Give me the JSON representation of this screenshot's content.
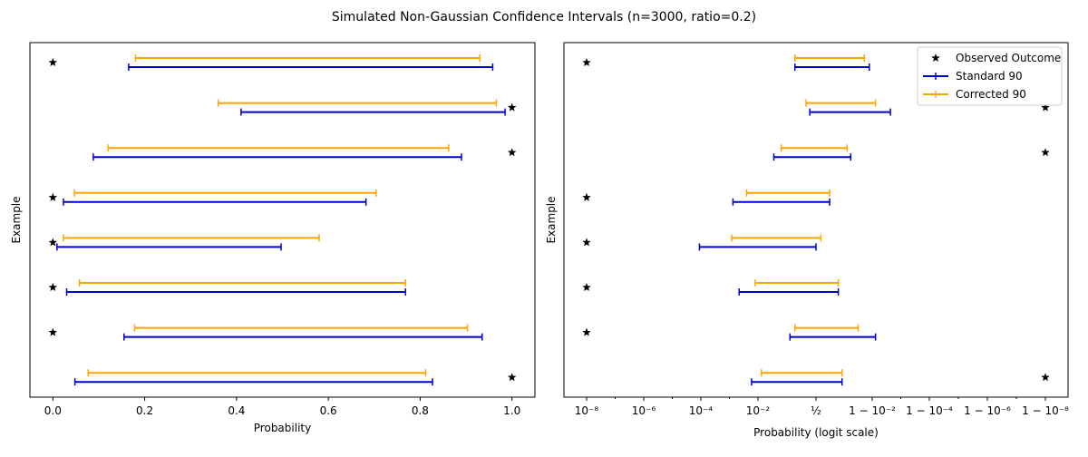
{
  "figure": {
    "title": "Simulated Non-Gaussian Confidence Intervals (n=3000, ratio=0.2)"
  },
  "chart_data": [
    {
      "type": "interval",
      "name": "left",
      "xlabel": "Probability",
      "ylabel": "Example",
      "xscale": "linear",
      "xlim": [
        -0.05,
        1.05
      ],
      "xticks": [
        0.0,
        0.2,
        0.4,
        0.6,
        0.8,
        1.0
      ],
      "xtick_labels": [
        "0.0",
        "0.2",
        "0.4",
        "0.6",
        "0.8",
        "1.0"
      ],
      "legend": false,
      "examples": [
        {
          "outcome": 0,
          "standard": [
            0.165,
            0.958
          ],
          "corrected": [
            0.18,
            0.93
          ]
        },
        {
          "outcome": 1,
          "standard": [
            0.41,
            0.985
          ],
          "corrected": [
            0.36,
            0.966
          ]
        },
        {
          "outcome": 1,
          "standard": [
            0.088,
            0.89
          ],
          "corrected": [
            0.12,
            0.862
          ]
        },
        {
          "outcome": 0,
          "standard": [
            0.023,
            0.682
          ],
          "corrected": [
            0.047,
            0.704
          ]
        },
        {
          "outcome": 0,
          "standard": [
            0.009,
            0.497
          ],
          "corrected": [
            0.023,
            0.58
          ]
        },
        {
          "outcome": 0,
          "standard": [
            0.03,
            0.768
          ],
          "corrected": [
            0.058,
            0.768
          ]
        },
        {
          "outcome": 0,
          "standard": [
            0.155,
            0.935
          ],
          "corrected": [
            0.178,
            0.903
          ]
        },
        {
          "outcome": 1,
          "standard": [
            0.048,
            0.827
          ],
          "corrected": [
            0.077,
            0.812
          ]
        }
      ]
    },
    {
      "type": "interval",
      "name": "right",
      "xlabel": "Probability (logit scale)",
      "ylabel": "Example",
      "xscale": "logit",
      "xtick_labels": [
        "10⁻⁸",
        "10⁻⁶",
        "10⁻⁴",
        "10⁻²",
        "½",
        "1 − 10⁻²",
        "1 − 10⁻⁴",
        "1 − 10⁻⁶",
        "1 − 10⁻⁸"
      ],
      "legend": {
        "position": "upper-right",
        "entries": [
          "Observed Outcome",
          "Standard 90",
          "Corrected 90"
        ]
      },
      "examples": [
        {
          "outcome": 0,
          "standard_logit": [
            -0.85,
            2.15
          ],
          "corrected_logit": [
            -0.85,
            1.95
          ]
        },
        {
          "outcome": 1,
          "standard_logit": [
            -0.25,
            3.0
          ],
          "corrected_logit": [
            -0.4,
            2.4
          ]
        },
        {
          "outcome": 1,
          "standard_logit": [
            -1.7,
            1.4
          ],
          "corrected_logit": [
            -1.4,
            1.25
          ]
        },
        {
          "outcome": 0,
          "standard_logit": [
            -3.35,
            0.55
          ],
          "corrected_logit": [
            -2.8,
            0.55
          ]
        },
        {
          "outcome": 0,
          "standard_logit": [
            -4.7,
            0.0
          ],
          "corrected_logit": [
            -3.4,
            0.2
          ]
        },
        {
          "outcome": 0,
          "standard_logit": [
            -3.1,
            0.9
          ],
          "corrected_logit": [
            -2.45,
            0.9
          ]
        },
        {
          "outcome": 0,
          "standard_logit": [
            -1.05,
            2.4
          ],
          "corrected_logit": [
            -0.85,
            1.7
          ]
        },
        {
          "outcome": 1,
          "standard_logit": [
            -2.6,
            1.05
          ],
          "corrected_logit": [
            -2.2,
            1.05
          ]
        }
      ]
    }
  ],
  "colors": {
    "standard": "#0000cc",
    "corrected": "#ffa500",
    "outcome": "#000000"
  }
}
